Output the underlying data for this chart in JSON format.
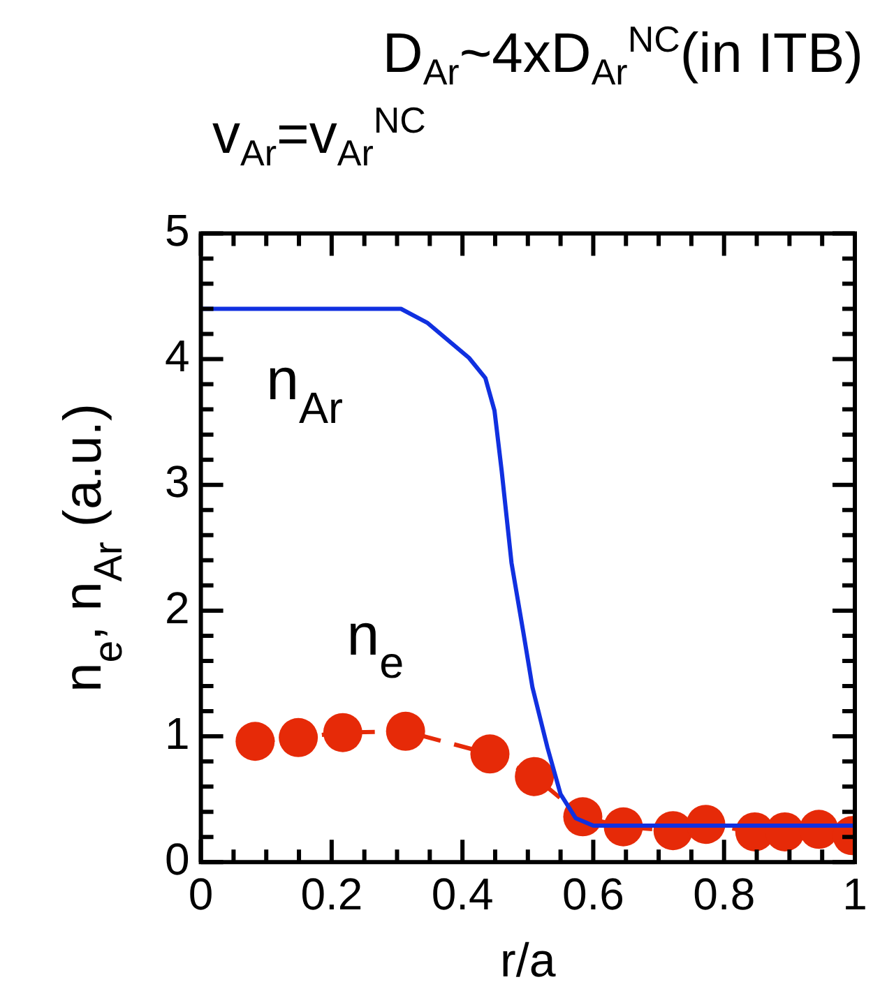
{
  "chart_data": {
    "type": "line",
    "title": "D$_{Ar}$~4xD$_{Ar}$$^{NC}$(in ITB)",
    "subtitle": "v$_{Ar}$=v$_{Ar}$$^{NC}$",
    "xlabel": "r/a",
    "ylabel": "n$_{e}$, n$_{Ar}$ (a.u.)",
    "xlim": [
      0,
      1
    ],
    "ylim": [
      0,
      5
    ],
    "xticks": [
      0,
      {
        "value": 0.05,
        "label": null
      },
      {
        "value": 0.1,
        "label": null
      },
      {
        "value": 0.15,
        "label": null
      },
      0.2,
      {
        "value": 0.25,
        "label": null
      },
      {
        "value": 0.3,
        "label": null
      },
      {
        "value": 0.35,
        "label": null
      },
      0.4,
      {
        "value": 0.45,
        "label": null
      },
      {
        "value": 0.5,
        "label": null
      },
      {
        "value": 0.55,
        "label": null
      },
      0.6,
      {
        "value": 0.65,
        "label": null
      },
      {
        "value": 0.7,
        "label": null
      },
      {
        "value": 0.75,
        "label": null
      },
      0.8,
      {
        "value": 0.85,
        "label": null
      },
      {
        "value": 0.9,
        "label": null
      },
      {
        "value": 0.95,
        "label": null
      },
      1
    ],
    "yticks": [
      0,
      {
        "value": 0.2,
        "label": null
      },
      {
        "value": 0.4,
        "label": null
      },
      {
        "value": 0.6,
        "label": null
      },
      {
        "value": 0.8,
        "label": null
      },
      1,
      {
        "value": 1.2,
        "label": null
      },
      {
        "value": 1.4,
        "label": null
      },
      {
        "value": 1.6,
        "label": null
      },
      {
        "value": 1.8,
        "label": null
      },
      2,
      {
        "value": 2.2,
        "label": null
      },
      {
        "value": 2.4,
        "label": null
      },
      {
        "value": 2.6,
        "label": null
      },
      {
        "value": 2.8,
        "label": null
      },
      3,
      {
        "value": 3.2,
        "label": null
      },
      {
        "value": 3.4,
        "label": null
      },
      {
        "value": 3.6,
        "label": null
      },
      {
        "value": 3.8,
        "label": null
      },
      4,
      {
        "value": 4.2,
        "label": null
      },
      {
        "value": 4.4,
        "label": null
      },
      {
        "value": 4.6,
        "label": null
      },
      {
        "value": 4.8,
        "label": null
      },
      5
    ],
    "grid": false,
    "legend": false,
    "series": [
      {
        "name": "n$_{Ar}$",
        "color": "#1030e0",
        "marker": "none",
        "line_style": "solid",
        "x": [
          0,
          0.306,
          0.346,
          0.41,
          0.435,
          0.449,
          0.46,
          0.475,
          0.493,
          0.507,
          0.53,
          0.55,
          0.573,
          0.6,
          0.8,
          1
        ],
        "values": [
          4.4,
          4.4,
          4.29,
          4.01,
          3.85,
          3.59,
          3.11,
          2.38,
          1.83,
          1.39,
          0.91,
          0.54,
          0.35,
          0.29,
          0.29,
          0.29
        ]
      },
      {
        "name": "n$_{e}$",
        "color": "#e62a08",
        "marker": "circle",
        "line_style": "dashed",
        "x": [
          0.083,
          0.149,
          0.217,
          0.313,
          0.442,
          0.51,
          0.584,
          0.646,
          0.722,
          0.772,
          0.847,
          0.893,
          0.945,
          0.996
        ],
        "values": [
          0.96,
          0.99,
          1.03,
          1.04,
          0.86,
          0.68,
          0.36,
          0.28,
          0.25,
          0.3,
          0.24,
          0.24,
          0.26,
          0.21
        ]
      }
    ]
  }
}
